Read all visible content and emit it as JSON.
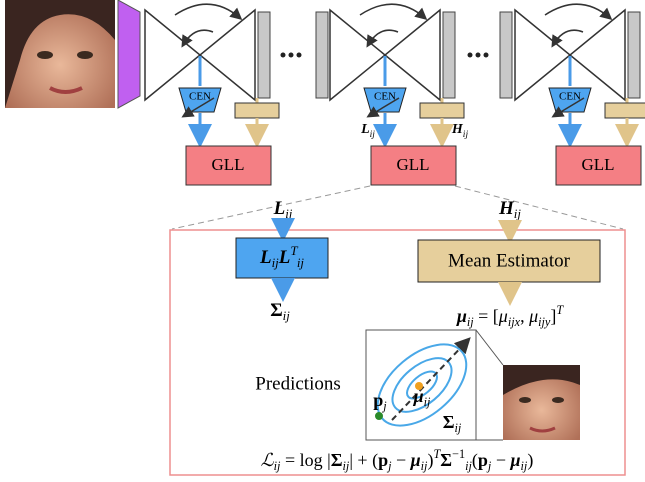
{
  "stages": [
    {
      "cen": "CEN",
      "gll": "GLL"
    },
    {
      "cen": "CEN",
      "gll": "GLL",
      "l_label": [
        {
          "t": "L",
          "f": "bi"
        },
        {
          "t": "ij",
          "s": "sub",
          "f": "i"
        }
      ],
      "h_label": [
        {
          "t": "H",
          "f": "bi"
        },
        {
          "t": "ij",
          "s": "sub",
          "f": "i"
        }
      ]
    },
    {
      "cen": "CEN",
      "gll": "GLL"
    }
  ],
  "detail": {
    "l_input": [
      {
        "t": "L",
        "f": "bi"
      },
      {
        "t": "ij",
        "s": "sub",
        "f": "i"
      }
    ],
    "h_input": [
      {
        "t": "H",
        "f": "bi"
      },
      {
        "t": "ij",
        "s": "sub",
        "f": "i"
      }
    ],
    "cov_box": [
      {
        "t": "L",
        "f": "bi"
      },
      {
        "t": "ij",
        "s": "sub",
        "f": "i"
      },
      {
        "t": "L",
        "f": "bi"
      },
      {
        "t": "T",
        "s": "sup",
        "f": "i"
      },
      {
        "t": "ij",
        "s": "sub",
        "f": "i"
      }
    ],
    "cov_out": [
      {
        "t": "Σ",
        "f": "b"
      },
      {
        "t": "ij",
        "s": "sub",
        "f": "i"
      }
    ],
    "mean_box": "Mean Estimator",
    "mean_out": [
      {
        "t": "μ",
        "f": "bi"
      },
      {
        "t": "ij",
        "s": "sub",
        "f": "i"
      },
      {
        "t": " = ["
      },
      {
        "t": "μ",
        "f": "i"
      },
      {
        "t": "ijx",
        "s": "sub",
        "f": "i"
      },
      {
        "t": ", "
      },
      {
        "t": "μ",
        "f": "i"
      },
      {
        "t": "ijy",
        "s": "sub",
        "f": "i"
      },
      {
        "t": "]"
      },
      {
        "t": "T",
        "s": "sup",
        "f": "i"
      }
    ],
    "predictions": "Predictions",
    "inset": {
      "point": [
        {
          "t": "p",
          "f": "b"
        },
        {
          "t": "j",
          "s": "sub",
          "f": "i"
        }
      ],
      "mean": [
        {
          "t": "μ",
          "f": "bi"
        },
        {
          "t": "ij",
          "s": "sub",
          "f": "i"
        }
      ],
      "cov": [
        {
          "t": "Σ",
          "f": "b"
        },
        {
          "t": "ij",
          "s": "sub",
          "f": "i"
        }
      ]
    },
    "loss": [
      {
        "t": "ℒ",
        "f": "i"
      },
      {
        "t": "ij",
        "s": "sub",
        "f": "i"
      },
      {
        "t": " = log |"
      },
      {
        "t": "Σ",
        "f": "b"
      },
      {
        "t": "ij",
        "s": "sub",
        "f": "i"
      },
      {
        "t": "| + ("
      },
      {
        "t": "p",
        "f": "b"
      },
      {
        "t": "j",
        "s": "sub",
        "f": "i"
      },
      {
        "t": " − "
      },
      {
        "t": "μ",
        "f": "bi"
      },
      {
        "t": "ij",
        "s": "sub",
        "f": "i"
      },
      {
        "t": ")"
      },
      {
        "t": "T",
        "s": "sup",
        "f": "i"
      },
      {
        "t": "Σ",
        "f": "b"
      },
      {
        "t": "−1",
        "s": "sup"
      },
      {
        "t": "ij",
        "s": "sub",
        "f": "i"
      },
      {
        "t": "("
      },
      {
        "t": "p",
        "f": "b"
      },
      {
        "t": "j",
        "s": "sub",
        "f": "i"
      },
      {
        "t": " − "
      },
      {
        "t": "μ",
        "f": "bi"
      },
      {
        "t": "ij",
        "s": "sub",
        "f": "i"
      },
      {
        "t": ")"
      }
    ]
  }
}
